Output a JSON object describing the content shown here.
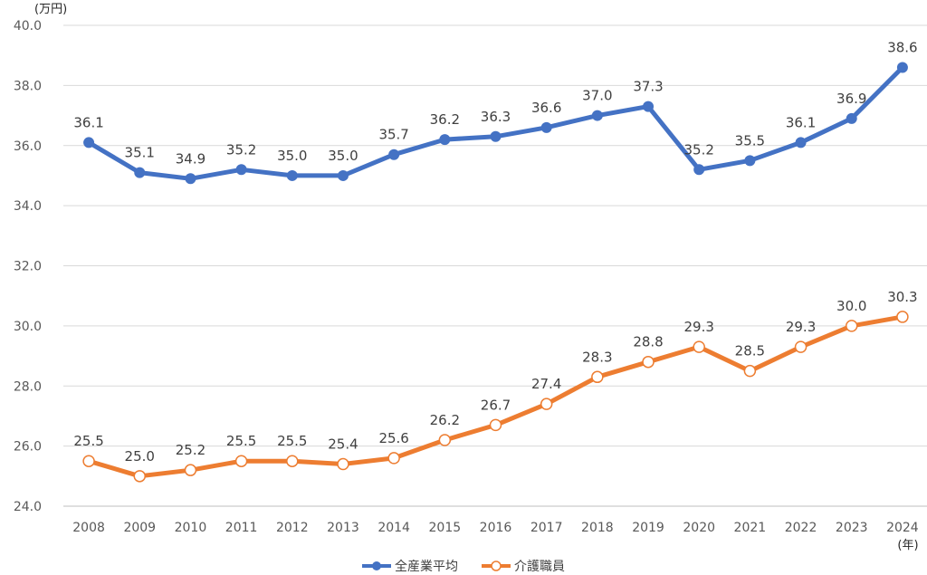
{
  "chart_data": {
    "type": "line",
    "y_unit": "(万円)",
    "x_unit": "(年)",
    "ylim": [
      24.0,
      40.0
    ],
    "y_ticks": [
      "24.0",
      "26.0",
      "28.0",
      "30.0",
      "32.0",
      "34.0",
      "36.0",
      "38.0",
      "40.0"
    ],
    "grid": true,
    "legend_position": "bottom",
    "categories": [
      "2008",
      "2009",
      "2010",
      "2011",
      "2012",
      "2013",
      "2014",
      "2015",
      "2016",
      "2017",
      "2018",
      "2019",
      "2020",
      "2021",
      "2022",
      "2023",
      "2024"
    ],
    "series": [
      {
        "name": "全産業平均",
        "color": "#4472c4",
        "marker": "filled-circle",
        "values": [
          36.1,
          35.1,
          34.9,
          35.2,
          35.0,
          35.0,
          35.7,
          36.2,
          36.3,
          36.6,
          37.0,
          37.3,
          35.2,
          35.5,
          36.1,
          36.9,
          38.6
        ],
        "labels": [
          "36.1",
          "35.1",
          "34.9",
          "35.2",
          "35.0",
          "35.0",
          "35.7",
          "36.2",
          "36.3",
          "36.6",
          "37.0",
          "37.3",
          "35.2",
          "35.5",
          "36.1",
          "36.9",
          "38.6"
        ]
      },
      {
        "name": "介護職員",
        "color": "#ed7d31",
        "marker": "hollow-circle",
        "values": [
          25.5,
          25.0,
          25.2,
          25.5,
          25.5,
          25.4,
          25.6,
          26.2,
          26.7,
          27.4,
          28.3,
          28.8,
          29.3,
          28.5,
          29.3,
          30.0,
          30.3
        ],
        "labels": [
          "25.5",
          "25.0",
          "25.2",
          "25.5",
          "25.5",
          "25.4",
          "25.6",
          "26.2",
          "26.7",
          "27.4",
          "28.3",
          "28.8",
          "29.3",
          "28.5",
          "29.3",
          "30.0",
          "30.3"
        ]
      }
    ]
  }
}
